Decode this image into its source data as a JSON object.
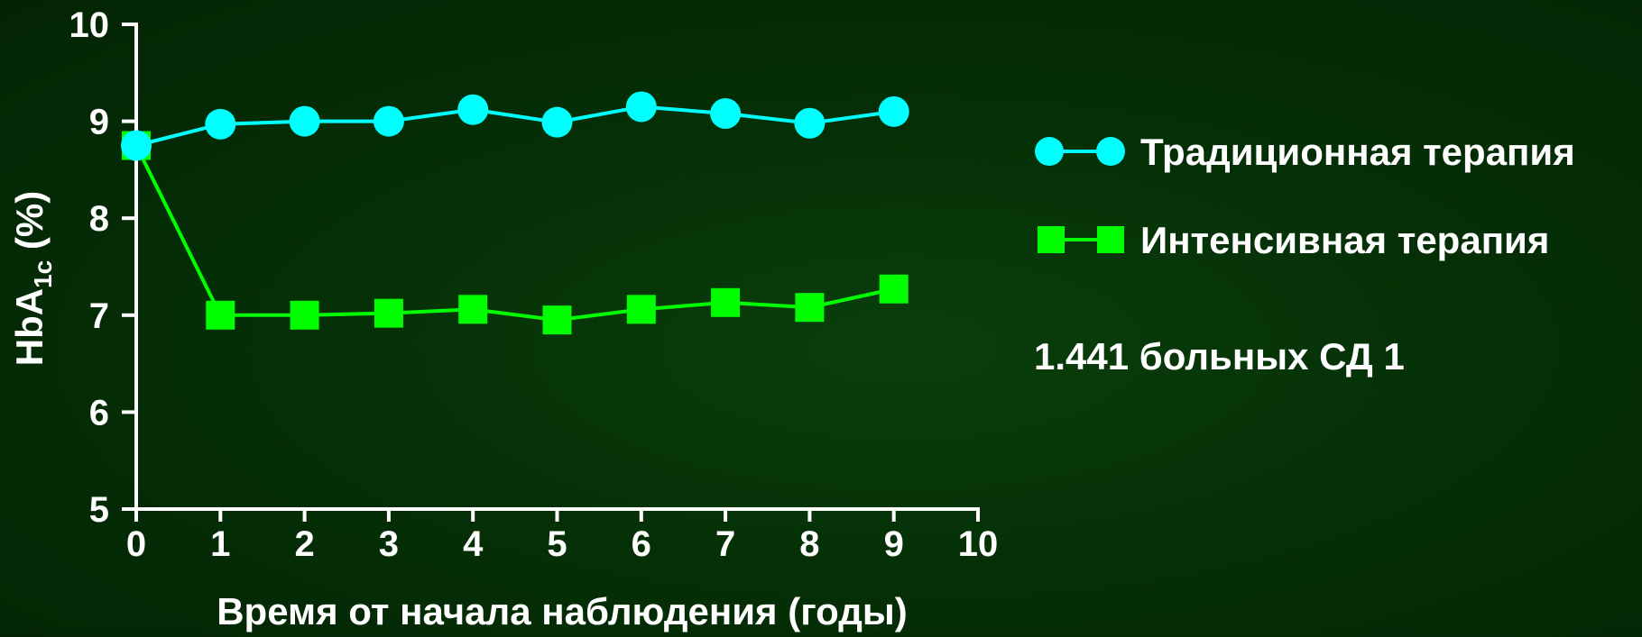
{
  "chart_data": {
    "type": "line",
    "xlabel": "Время от начала наблюдения (годы)",
    "ylabel_main": "HbA",
    "ylabel_sub": "1c",
    "ylabel_tail": " (%)",
    "xlim": [
      0,
      10
    ],
    "ylim": [
      5,
      10
    ],
    "x_ticks": [
      0,
      1,
      2,
      3,
      4,
      5,
      6,
      7,
      8,
      9,
      10
    ],
    "y_ticks": [
      5,
      6,
      7,
      8,
      9,
      10
    ],
    "grid": false,
    "legend_position": "right",
    "series": [
      {
        "name": "Традиционная терапия",
        "marker": "circle",
        "color": "#00ffff",
        "x": [
          0,
          1,
          2,
          3,
          4,
          5,
          6,
          7,
          8,
          9
        ],
        "y": [
          8.75,
          8.97,
          9.0,
          9.0,
          9.12,
          8.99,
          9.15,
          9.08,
          8.98,
          9.1
        ]
      },
      {
        "name": "Интенсивная терапия",
        "marker": "square",
        "color": "#00ff00",
        "x": [
          0,
          1,
          2,
          3,
          4,
          5,
          6,
          7,
          8,
          9
        ],
        "y": [
          8.75,
          7.0,
          7.0,
          7.02,
          7.06,
          6.95,
          7.06,
          7.13,
          7.08,
          7.27
        ]
      }
    ],
    "annotation": "1.441 больных СД 1"
  },
  "colors": {
    "background": "#053006",
    "axis": "#ffffff",
    "text": "#ffffff"
  }
}
